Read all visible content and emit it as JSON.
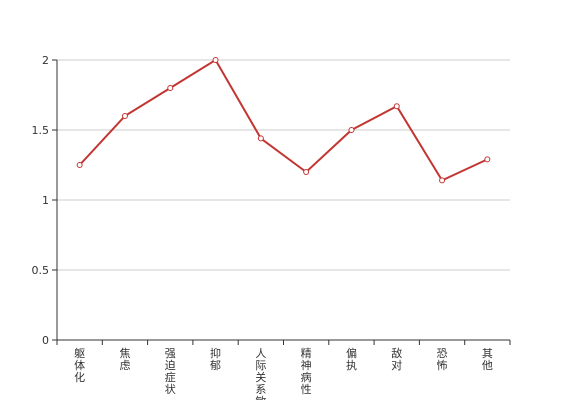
{
  "chart_data": {
    "type": "line",
    "categories": [
      "躯体化",
      "焦虑",
      "强迫症状",
      "抑郁",
      "人际关系敏感",
      "精神病性",
      "偏执",
      "敌对",
      "恐怖",
      "其他"
    ],
    "series": [
      {
        "color": "#c23531",
        "values": [
          1.25,
          1.6,
          1.8,
          2,
          1.44,
          1.2,
          1.5,
          1.67,
          1.14,
          1.29
        ]
      }
    ],
    "ylim": [
      0,
      2
    ],
    "yticks": [
      0,
      0.5,
      1,
      1.5,
      2
    ],
    "grid": true
  }
}
